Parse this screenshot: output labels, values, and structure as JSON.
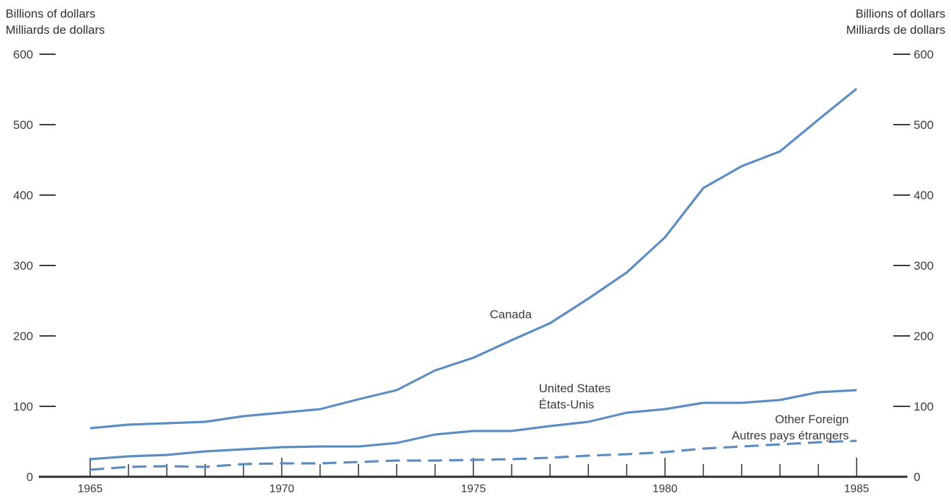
{
  "chart_data": {
    "type": "line",
    "y_axis_title_left": [
      "Billions of dollars",
      "Milliards de dollars"
    ],
    "y_axis_title_right": [
      "Billions of dollars",
      "Milliards de dollars"
    ],
    "ylim": [
      0,
      600
    ],
    "yticks": [
      0,
      100,
      200,
      300,
      400,
      500,
      600
    ],
    "xlim": [
      1964,
      1986
    ],
    "xticks": [
      1965,
      1970,
      1975,
      1980,
      1985
    ],
    "x": [
      1965,
      1966,
      1967,
      1968,
      1969,
      1970,
      1971,
      1972,
      1973,
      1974,
      1975,
      1976,
      1977,
      1978,
      1979,
      1980,
      1981,
      1982,
      1983,
      1984,
      1985
    ],
    "series": [
      {
        "label": [
          "Canada"
        ],
        "style": "solid",
        "color": "#5b8cc2",
        "values": [
          69,
          74,
          76,
          78,
          86,
          91,
          96,
          110,
          123,
          151,
          169,
          194,
          218,
          253,
          290,
          340,
          410,
          441,
          462,
          507,
          551
        ]
      },
      {
        "label": [
          "United States",
          "États-Unis"
        ],
        "style": "solid",
        "color": "#5b8cc2",
        "values": [
          25,
          29,
          31,
          36,
          39,
          42,
          43,
          43,
          48,
          60,
          65,
          65,
          72,
          78,
          91,
          96,
          105,
          105,
          109,
          120,
          123
        ]
      },
      {
        "label": [
          "Other Foreign",
          "Autres pays étrangers"
        ],
        "style": "dashed",
        "color": "#5b8cc2",
        "values": [
          10,
          14,
          15,
          14,
          18,
          19,
          19,
          21,
          23,
          23,
          24,
          25,
          27,
          30,
          32,
          35,
          40,
          43,
          46,
          49,
          51
        ]
      }
    ]
  }
}
